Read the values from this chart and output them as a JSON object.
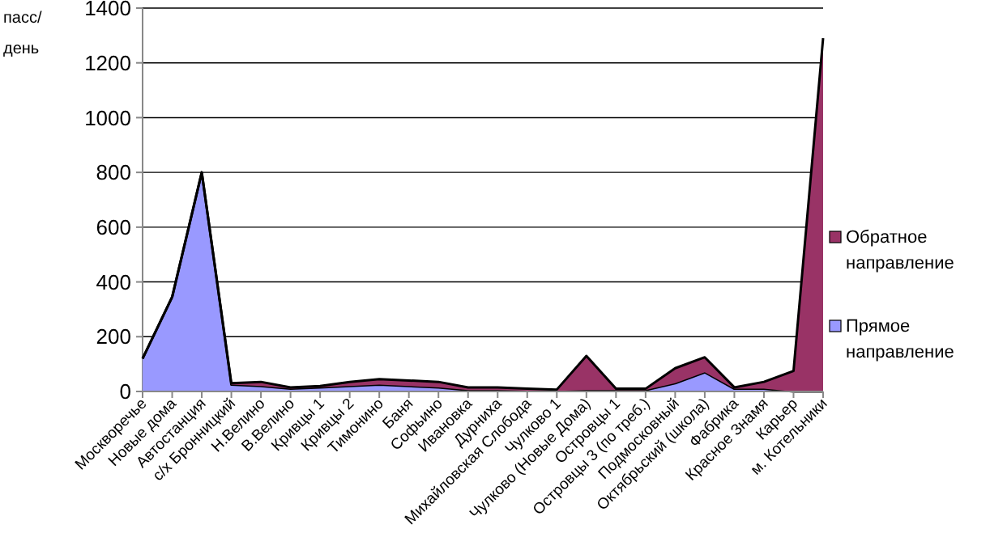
{
  "chart_data": {
    "type": "area",
    "stacked": true,
    "ylabel": "пасс/ день",
    "categories": [
      "Москворечье",
      "Новые дома",
      "Автостанция",
      "с/х Бронницкий",
      "Н.Велино",
      "В.Велино",
      "Кривцы 1",
      "Кривцы 2",
      "Тимонино",
      "Баня",
      "Софьино",
      "Ивановка",
      "Дурниха",
      "Михайловская Слобода",
      "Чулково 1",
      "Чулково (Новые Дома)",
      "Островцы 1",
      "Островцы 3 (по треб.)",
      "Подмосковный",
      "Октябрьский (школа)",
      "Фабрика",
      "Красное Знамя",
      "Карьер",
      "м. Котельники"
    ],
    "series": [
      {
        "name": "Прямое направление",
        "color": "#9999ff",
        "values": [
          120,
          345,
          800,
          25,
          20,
          10,
          15,
          20,
          25,
          20,
          15,
          5,
          5,
          3,
          2,
          5,
          5,
          5,
          30,
          70,
          10,
          10,
          0,
          0
        ]
      },
      {
        "name": "Обратное направление",
        "color": "#993366",
        "values": [
          0,
          0,
          0,
          5,
          15,
          5,
          5,
          15,
          20,
          20,
          20,
          10,
          10,
          7,
          5,
          125,
          5,
          5,
          55,
          55,
          5,
          25,
          75,
          1290
        ]
      }
    ],
    "ylim": [
      0,
      1400
    ],
    "yticks": [
      0,
      200,
      400,
      600,
      800,
      1000,
      1200,
      1400
    ],
    "grid": "y",
    "legend": "right"
  }
}
